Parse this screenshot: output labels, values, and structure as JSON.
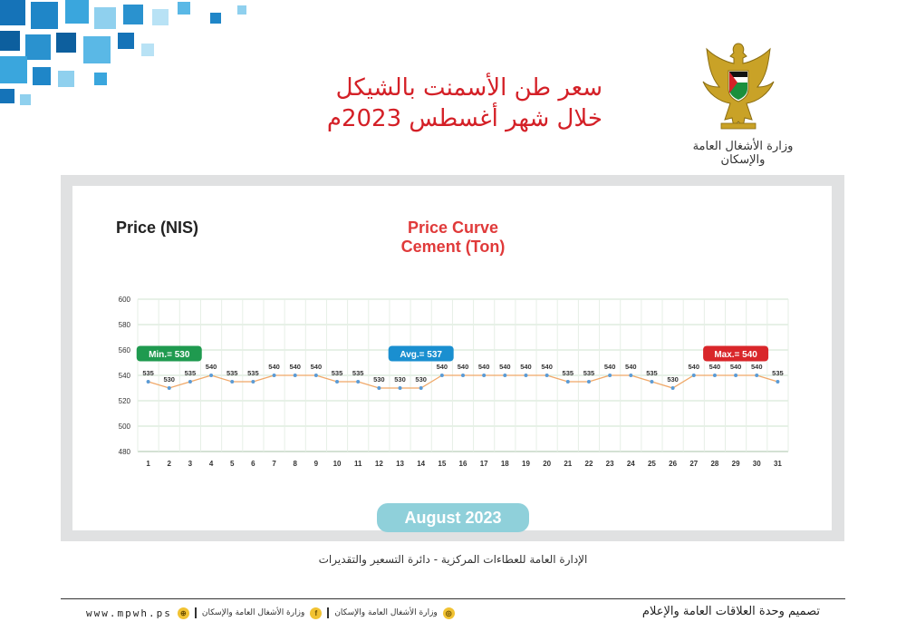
{
  "header": {
    "title_line1": "سعر طن الأسمنت بالشيكل",
    "title_line2": "خلال شهر أغسطس 2023م",
    "ministry_name": "وزارة الأشغال العامة والإسكان"
  },
  "chart_panel": {
    "price_label": "Price (NIS)",
    "month_label": "August  2023",
    "department_credit": "الإدارة العامة للعطاءات المركزية - دائرة التسعير والتقديرات"
  },
  "chart_data": {
    "type": "line",
    "title": "Price Curve",
    "subtitle": "Cement (Ton)",
    "ylabel": "Price (NIS)",
    "xlabel": "",
    "ylim": [
      480,
      600
    ],
    "yticks": [
      480,
      500,
      520,
      540,
      560,
      580,
      600
    ],
    "grid": true,
    "x": [
      1,
      2,
      3,
      4,
      5,
      6,
      7,
      8,
      9,
      10,
      11,
      12,
      13,
      14,
      15,
      16,
      17,
      18,
      19,
      20,
      21,
      22,
      23,
      24,
      25,
      26,
      27,
      28,
      29,
      30,
      31
    ],
    "series": [
      {
        "values": [
          535,
          530,
          535,
          540,
          535,
          535,
          540,
          540,
          540,
          535,
          535,
          530,
          530,
          530,
          540,
          540,
          540,
          540,
          540,
          540,
          535,
          535,
          540,
          540,
          535,
          530,
          540,
          540,
          540,
          540,
          535
        ],
        "line_color": "#f0a868",
        "marker_color": "#5b9bd5"
      }
    ],
    "annotations": [
      {
        "text": "Min.= 530",
        "color": "#1f9a4f",
        "at_day": 2
      },
      {
        "text": "Avg.= 537",
        "color": "#1a8fd0",
        "at_day": 14
      },
      {
        "text": "Max.= 540",
        "color": "#d9262a",
        "at_day": 29
      }
    ]
  },
  "footer": {
    "design_credit": "تصميم وحدة العلاقات العامة والإعلام",
    "website": "www.mpwh.ps",
    "facebook": "وزارة الأشغال العامة والإسكان",
    "instagram": "وزارة الأشغال العامة والإسكان",
    "web_icon": "globe-icon",
    "facebook_icon": "facebook-icon",
    "instagram_icon": "instagram-icon"
  }
}
